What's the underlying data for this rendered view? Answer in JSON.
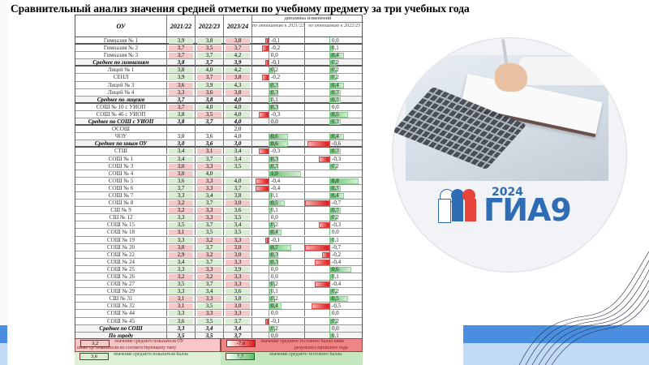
{
  "title": "Сравнительный анализ значения средней отметки по учебному предмету за три учебных года",
  "table": {
    "headers": {
      "name": "ОУ",
      "y1": "2021/22",
      "y2": "2022/23",
      "y3": "2023/24",
      "dynamics": "динамика изменений",
      "d1": "по отношению к 2021/22",
      "d2": "по отношению к 2022/23"
    },
    "rows": [
      {
        "name": "Гимназия № 1",
        "v": [
          "3,9",
          "3,8",
          "3,8"
        ],
        "c": [
          "g",
          "g",
          "r"
        ],
        "d1": "-0,1",
        "d2": "0,0",
        "bold": false
      },
      {
        "name": "Гимназия № 2",
        "v": [
          "3,7",
          "3,5",
          "3,7"
        ],
        "c": [
          "r",
          "r",
          "r"
        ],
        "d1": "-0,2",
        "d2": "0,1",
        "bold": false
      },
      {
        "name": "Гимназия № 3",
        "v": [
          "3,7",
          "3,7",
          "4,2"
        ],
        "c": [
          "r",
          "g",
          "g"
        ],
        "d1": "0,0",
        "d2": "0,4",
        "bold": false
      },
      {
        "name": "Среднее по гимназиям",
        "v": [
          "3,8",
          "3,7",
          "3,9"
        ],
        "c": [
          "",
          "",
          ""
        ],
        "d1": "-0,1",
        "d2": "0,2",
        "bold": true
      },
      {
        "name": "Лицей № 1",
        "v": [
          "3,8",
          "4,0",
          "4,2"
        ],
        "c": [
          "g",
          "g",
          "g"
        ],
        "d1": "0,2",
        "d2": "0,2",
        "bold": false
      },
      {
        "name": "СЕНЛ",
        "v": [
          "3,9",
          "3,7",
          "3,8"
        ],
        "c": [
          "g",
          "r",
          "r"
        ],
        "d1": "-0,2",
        "d2": "0,2",
        "bold": false
      },
      {
        "name": "Лицей № 3",
        "v": [
          "3,6",
          "3,9",
          "4,3"
        ],
        "c": [
          "r",
          "g",
          "g"
        ],
        "d1": "0,3",
        "d2": "0,4",
        "bold": false
      },
      {
        "name": "Лицей № 4",
        "v": [
          "3,3",
          "3,6",
          "3,8"
        ],
        "c": [
          "r",
          "r",
          "r"
        ],
        "d1": "0,3",
        "d2": "0,3",
        "bold": false
      },
      {
        "name": "Среднее по лицеям",
        "v": [
          "3,7",
          "3,8",
          "4,0"
        ],
        "c": [
          "",
          "",
          ""
        ],
        "d1": "0,1",
        "d2": "0,3",
        "bold": true
      },
      {
        "name": "СОШ № 10 с УИОП",
        "v": [
          "3,7",
          "4,0",
          "4,0"
        ],
        "c": [
          "r",
          "g",
          "g"
        ],
        "d1": "0,3",
        "d2": "0,0",
        "bold": false
      },
      {
        "name": "СОШ № 46 с УИОП",
        "v": [
          "3,8",
          "3,5",
          "4,0"
        ],
        "c": [
          "g",
          "r",
          "g"
        ],
        "d1": "-0,3",
        "d2": "0,5",
        "bold": false
      },
      {
        "name": "Среднее по СОШ с УИОП",
        "v": [
          "3,8",
          "3,7",
          "4,0"
        ],
        "c": [
          "",
          "",
          ""
        ],
        "d1": "0,0",
        "d2": "0,3",
        "bold": true
      },
      {
        "name": "ОСОШ",
        "v": [
          "",
          "",
          "2,0"
        ],
        "c": [
          "",
          "",
          ""
        ],
        "d1": "",
        "d2": "",
        "bold": false
      },
      {
        "name": "ЧОУ",
        "v": [
          "3,0",
          "3,6",
          "4,0"
        ],
        "c": [
          "",
          "",
          ""
        ],
        "d1": "0,6",
        "d2": "0,4",
        "bold": false
      },
      {
        "name": "Среднее по иным ОУ",
        "v": [
          "3,0",
          "3,6",
          "3,0"
        ],
        "c": [
          "",
          "",
          ""
        ],
        "d1": "0,6",
        "d2": "-0,6",
        "bold": true
      },
      {
        "name": "СТШ",
        "v": [
          "3,4",
          "3,1",
          "3,4"
        ],
        "c": [
          "g",
          "r",
          "g"
        ],
        "d1": "-0,3",
        "d2": "0,3",
        "bold": false
      },
      {
        "name": "СОШ № 1",
        "v": [
          "3,4",
          "3,7",
          "3,4"
        ],
        "c": [
          "g",
          "g",
          "g"
        ],
        "d1": "0,3",
        "d2": "-0,3",
        "bold": false
      },
      {
        "name": "СОШ № 3",
        "v": [
          "3,0",
          "3,3",
          "3,5"
        ],
        "c": [
          "r",
          "r",
          "g"
        ],
        "d1": "0,3",
        "d2": "0,2",
        "bold": false
      },
      {
        "name": "СОШ № 4",
        "v": [
          "3,0",
          "4,0",
          ""
        ],
        "c": [
          "r",
          "g",
          ""
        ],
        "d1": "1,0",
        "d2": "",
        "bold": false
      },
      {
        "name": "СОШ № 5",
        "v": [
          "3,6",
          "3,3",
          "4,0"
        ],
        "c": [
          "g",
          "r",
          "g"
        ],
        "d1": "-0,4",
        "d2": "0,8",
        "bold": false
      },
      {
        "name": "СОШ № 6",
        "v": [
          "3,7",
          "3,3",
          "3,7"
        ],
        "c": [
          "g",
          "r",
          "g"
        ],
        "d1": "-0,4",
        "d2": "0,3",
        "bold": false
      },
      {
        "name": "СОШ № 7",
        "v": [
          "3,3",
          "3,4",
          "3,8"
        ],
        "c": [
          "g",
          "g",
          "g"
        ],
        "d1": "0,1",
        "d2": "0,4",
        "bold": false
      },
      {
        "name": "СОШ № 8",
        "v": [
          "3,2",
          "3,7",
          "3,0"
        ],
        "c": [
          "r",
          "g",
          "r"
        ],
        "d1": "0,5",
        "d2": "-0,7",
        "bold": false
      },
      {
        "name": "СШ № 9",
        "v": [
          "3,2",
          "3,3",
          "3,6"
        ],
        "c": [
          "r",
          "r",
          "g"
        ],
        "d1": "0,1",
        "d2": "0,3",
        "bold": false
      },
      {
        "name": "СШ № 12",
        "v": [
          "3,3",
          "3,3",
          "3,5"
        ],
        "c": [
          "g",
          "r",
          "g"
        ],
        "d1": "0,0",
        "d2": "0,2",
        "bold": false
      },
      {
        "name": "СОШ № 15",
        "v": [
          "3,5",
          "3,7",
          "3,4"
        ],
        "c": [
          "g",
          "g",
          "g"
        ],
        "d1": "0,2",
        "d2": "-0,3",
        "bold": false
      },
      {
        "name": "СОШ № 18",
        "v": [
          "3,1",
          "3,5",
          "3,5"
        ],
        "c": [
          "r",
          "g",
          "g"
        ],
        "d1": "0,4",
        "d2": "0,0",
        "bold": false
      },
      {
        "name": "СОШ № 19",
        "v": [
          "3,3",
          "3,2",
          "3,3"
        ],
        "c": [
          "g",
          "r",
          "r"
        ],
        "d1": "-0,1",
        "d2": "0,1",
        "bold": false
      },
      {
        "name": "СОШ № 20",
        "v": [
          "3,0",
          "3,7",
          "3,0"
        ],
        "c": [
          "r",
          "g",
          "r"
        ],
        "d1": "0,7",
        "d2": "-0,7",
        "bold": false
      },
      {
        "name": "СОШ № 22",
        "v": [
          "2,9",
          "3,2",
          "3,0"
        ],
        "c": [
          "r",
          "r",
          "r"
        ],
        "d1": "0,3",
        "d2": "-0,2",
        "bold": false
      },
      {
        "name": "СОШ № 24",
        "v": [
          "3,4",
          "3,7",
          "3,3"
        ],
        "c": [
          "g",
          "g",
          "r"
        ],
        "d1": "0,3",
        "d2": "-0,4",
        "bold": false
      },
      {
        "name": "СОШ № 25",
        "v": [
          "3,3",
          "3,3",
          "3,9"
        ],
        "c": [
          "g",
          "r",
          "g"
        ],
        "d1": "0,0",
        "d2": "0,6",
        "bold": false
      },
      {
        "name": "СОШ № 26",
        "v": [
          "3,2",
          "3,2",
          "3,3"
        ],
        "c": [
          "r",
          "r",
          "r"
        ],
        "d1": "0,0",
        "d2": "0,1",
        "bold": false
      },
      {
        "name": "СОШ № 27",
        "v": [
          "3,5",
          "3,7",
          "3,3"
        ],
        "c": [
          "g",
          "g",
          "r"
        ],
        "d1": "0,2",
        "d2": "-0,4",
        "bold": false
      },
      {
        "name": "СОШ № 29",
        "v": [
          "3,3",
          "3,4",
          "3,6"
        ],
        "c": [
          "g",
          "g",
          "g"
        ],
        "d1": "0,1",
        "d2": "0,2",
        "bold": false
      },
      {
        "name": "СШ № 31",
        "v": [
          "3,1",
          "3,3",
          "3,8"
        ],
        "c": [
          "r",
          "r",
          "g"
        ],
        "d1": "0,2",
        "d2": "0,5",
        "bold": false
      },
      {
        "name": "СОШ № 32",
        "v": [
          "3,1",
          "3,5",
          "3,0"
        ],
        "c": [
          "r",
          "g",
          "r"
        ],
        "d1": "0,4",
        "d2": "-0,5",
        "bold": false
      },
      {
        "name": "СОШ № 44",
        "v": [
          "3,3",
          "3,3",
          "3,3"
        ],
        "c": [
          "g",
          "r",
          "r"
        ],
        "d1": "0,0",
        "d2": "0,0",
        "bold": false
      },
      {
        "name": "СОШ № 45",
        "v": [
          "3,6",
          "3,5",
          "3,7"
        ],
        "c": [
          "g",
          "g",
          "g"
        ],
        "d1": "-0,1",
        "d2": "0,2",
        "bold": false
      },
      {
        "name": "Среднее по СОШ",
        "v": [
          "3,3",
          "3,4",
          "3,4"
        ],
        "c": [
          "",
          "",
          ""
        ],
        "d1": "0,2",
        "d2": "0,0",
        "bold": true
      },
      {
        "name": "По городу",
        "v": [
          "3,5",
          "3,5",
          "3,7"
        ],
        "c": [
          "",
          "",
          ""
        ],
        "d1": "0,0",
        "d2": "0,1",
        "bold": true
      }
    ]
  },
  "legend": {
    "red_swatch": "3,2",
    "red_text_1": "значение среднего показателя  ОУ",
    "red_text_2": "ниже ср. показателя по соответствующему типу",
    "red_bar_swatch": "-7,0",
    "red_bar_text_1": "значение среднего тестового балла ниже",
    "red_bar_text_2": "результата прошлого года",
    "green_swatch": "3,6",
    "green_text": "значение среднего показателя балла",
    "green_bar_swatch": "7,7",
    "green_bar_text": "значение среднего тестового балла"
  },
  "logo": {
    "year": "2024",
    "text": "ГИА9"
  },
  "colors": {
    "green_cell": "#dbeed3",
    "red_cell": "#f6c9c9",
    "band_dark": "#4a8ee0",
    "band_light": "#c3daf6",
    "logo_blue": "#2e6db5",
    "logo_red": "#e8443a"
  }
}
